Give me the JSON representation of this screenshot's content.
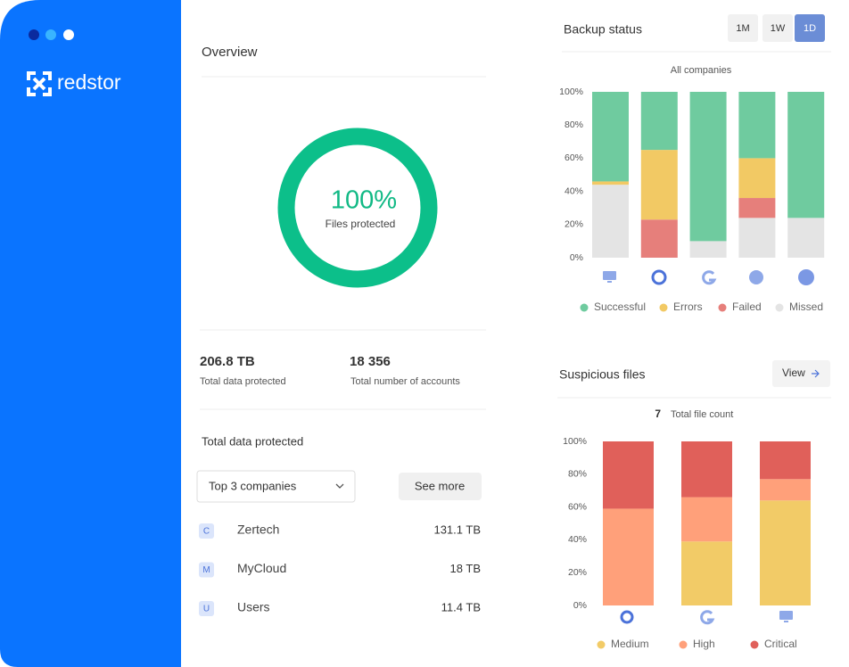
{
  "sidebar": {
    "logo": "redstor"
  },
  "overview": {
    "title": "Overview",
    "files_protected": {
      "value": 100,
      "label": "100%",
      "caption": "Files protected"
    },
    "stats": [
      {
        "value": "206.8 TB",
        "label": "Total data protected"
      },
      {
        "value": "18 356",
        "label": "Total number of accounts"
      }
    ],
    "section_title": "Total data protected",
    "dropdown": "Top 3 companies",
    "see_more": "See more",
    "table": {
      "rows": [
        [
          "C",
          "Zertech",
          "131.1 TB"
        ],
        [
          "M",
          "MyCloud",
          "18 TB"
        ],
        [
          "U",
          "Users",
          "11.4 TB"
        ]
      ]
    }
  },
  "backup_status": {
    "title": "Backup status",
    "periods": [
      "1M",
      "1W",
      "1D"
    ],
    "active_period": 2
  },
  "suspicious_files": {
    "title": "Suspicious files",
    "view": "View",
    "count": 7,
    "count_label": "Total file count"
  },
  "chart_data": [
    {
      "type": "bar",
      "stacked": true,
      "reverse_stack": true,
      "subtitle": "All companies",
      "categories": [
        null,
        null,
        null,
        null,
        null
      ],
      "series": [
        {
          "name": "Successful",
          "color": "#6fcb9f",
          "values": [
            54,
            35,
            90,
            40,
            76
          ]
        },
        {
          "name": "Errors",
          "color": "#f2c964",
          "values": [
            2,
            42,
            0,
            24,
            0
          ]
        },
        {
          "name": "Failed",
          "color": "#e67f7b",
          "values": [
            0,
            23,
            0,
            12,
            0
          ]
        },
        {
          "name": "Missed",
          "color": "#e4e4e4",
          "values": [
            44,
            0,
            10,
            24,
            24
          ]
        }
      ],
      "ylim": [
        0,
        100
      ],
      "yticks": [
        {
          "value": 0,
          "label": "0%"
        },
        {
          "value": 20,
          "label": "20%"
        },
        {
          "value": 40,
          "label": "40%"
        },
        {
          "value": 60,
          "label": "60%"
        },
        {
          "value": 80,
          "label": "80%"
        },
        {
          "value": 100,
          "label": "100%"
        }
      ]
    },
    {
      "type": "bar",
      "stacked": true,
      "reverse_stack": false,
      "categories": [
        null,
        null,
        null
      ],
      "series": [
        {
          "name": "Medium",
          "color": "#f2cb67",
          "values": [
            0,
            39,
            64
          ]
        },
        {
          "name": "High",
          "color": "#ffa07a",
          "values": [
            59,
            27,
            13
          ]
        },
        {
          "name": "Critical",
          "color": "#e0605a",
          "values": [
            41,
            34,
            23
          ]
        }
      ],
      "ylim": [
        0,
        100
      ],
      "yticks": [
        {
          "value": 0,
          "label": "0%"
        },
        {
          "value": 20,
          "label": "20%"
        },
        {
          "value": 40,
          "label": "40%"
        },
        {
          "value": 60,
          "label": "60%"
        },
        {
          "value": 80,
          "label": "80%"
        },
        {
          "value": 100,
          "label": "100%"
        }
      ]
    }
  ]
}
